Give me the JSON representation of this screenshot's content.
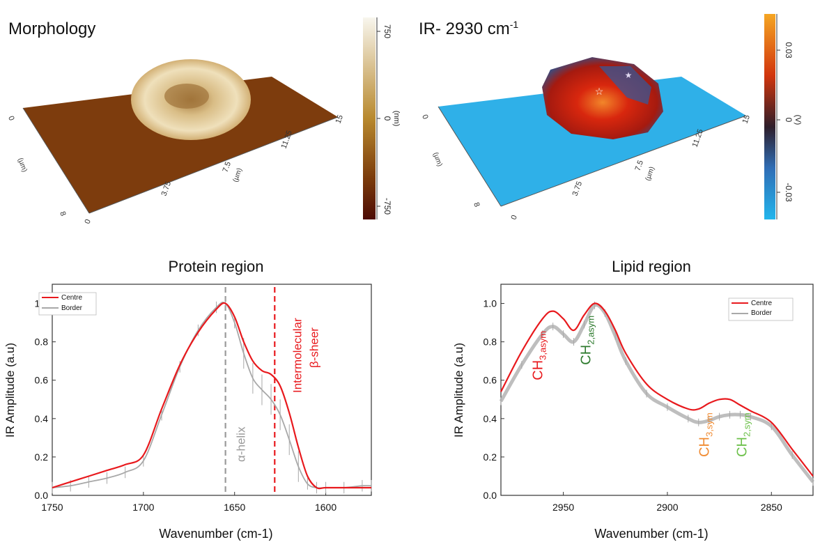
{
  "panels": {
    "morphology": {
      "title": "Morphology",
      "colorbar_ticks": [
        "750",
        "0",
        "-750"
      ],
      "colorbar_unit": "(nm)",
      "x_ticks": [
        "0",
        "3.75",
        "7.5",
        "11.25",
        "15"
      ],
      "x_unit": "(µm)",
      "y_ticks": [
        "0",
        "8"
      ],
      "y_unit": "(µm)",
      "colors": {
        "top": "#f8f6ee",
        "mid": "#b8892e",
        "low": "#7a3a0b",
        "bottom": "#4d0c05",
        "surface": "#7d3c0d"
      }
    },
    "ir_map": {
      "title_main": "IR- 2930 cm",
      "title_sup": "-1",
      "colorbar_ticks": [
        "0.03",
        "0",
        "-0.03"
      ],
      "colorbar_unit": "(V)",
      "x_ticks": [
        "0",
        "3.75",
        "7.5",
        "11.25",
        "15"
      ],
      "x_unit": "(µm)",
      "y_ticks": [
        "0",
        "8"
      ],
      "y_unit": "(µm)",
      "colors": {
        "top": "#f5a623",
        "mid_high": "#d1350d",
        "mid": "#2e1e2a",
        "mid_low": "#2f6db5",
        "bottom": "#22b5ec",
        "surface": "#2fb0e8"
      }
    }
  },
  "chart_data": [
    {
      "type": "line",
      "title": "Protein region",
      "xlabel": "Wavenumber (cm-1)",
      "ylabel": "IR Amplitude (a.u)",
      "xlim": [
        1750,
        1575
      ],
      "ylim": [
        0,
        1.1
      ],
      "x_ticks": [
        1750,
        1700,
        1650,
        1600
      ],
      "y_ticks": [
        0.0,
        0.2,
        0.4,
        0.6,
        0.8,
        1.0
      ],
      "y_tick_labels": [
        "0.0",
        "0.2",
        "0.4",
        "0.6",
        "0.8",
        "1.0"
      ],
      "x_tick_labels": [
        "1750",
        "1700",
        "1650",
        "1600"
      ],
      "legend": {
        "position": "top-left",
        "entries": [
          "Centre",
          "Border"
        ]
      },
      "colors": {
        "Centre": "#e8191d",
        "Border": "#a8a8a8"
      },
      "x": [
        1750,
        1740,
        1730,
        1720,
        1710,
        1700,
        1690,
        1680,
        1670,
        1660,
        1655,
        1650,
        1645,
        1640,
        1635,
        1630,
        1625,
        1620,
        1615,
        1610,
        1605,
        1600,
        1590,
        1580,
        1575
      ],
      "series": [
        {
          "name": "Centre",
          "values": [
            0.04,
            0.07,
            0.1,
            0.13,
            0.16,
            0.21,
            0.45,
            0.68,
            0.85,
            0.97,
            1.0,
            0.93,
            0.8,
            0.7,
            0.65,
            0.63,
            0.57,
            0.43,
            0.25,
            0.1,
            0.04,
            0.04,
            0.04,
            0.04,
            0.04
          ]
        },
        {
          "name": "Border",
          "values": [
            0.04,
            0.05,
            0.07,
            0.09,
            0.12,
            0.18,
            0.42,
            0.67,
            0.86,
            0.98,
            1.0,
            0.9,
            0.74,
            0.61,
            0.55,
            0.5,
            0.42,
            0.29,
            0.15,
            0.06,
            0.04,
            0.04,
            0.04,
            0.05,
            0.05
          ]
        }
      ],
      "annotations": [
        {
          "x": 1655,
          "label": "α-helix",
          "color": "#9a9a9a"
        },
        {
          "x": 1628,
          "label": "Intermolecular",
          "label2": "β-sheer",
          "color": "#e8191d"
        }
      ]
    },
    {
      "type": "line",
      "title": "Lipid region",
      "xlabel": "Wavenumber (cm-1)",
      "ylabel": "IR Amplitude (a.u)",
      "xlim": [
        2980,
        2830
      ],
      "ylim": [
        0,
        1.1
      ],
      "x_ticks": [
        2950,
        2900,
        2850
      ],
      "x_tick_labels": [
        "2950",
        "2900",
        "2850"
      ],
      "y_ticks": [
        0.0,
        0.2,
        0.4,
        0.6,
        0.8,
        1.0
      ],
      "y_tick_labels": [
        "0.0",
        "0.2",
        "0.4",
        "0.6",
        "0.8",
        "1.0"
      ],
      "legend": {
        "position": "top-right",
        "entries": [
          "Centre",
          "Border"
        ]
      },
      "colors": {
        "Centre": "#e8191d",
        "Border": "#a8a8a8"
      },
      "x": [
        2980,
        2970,
        2960,
        2955,
        2950,
        2945,
        2940,
        2935,
        2930,
        2925,
        2920,
        2910,
        2900,
        2890,
        2885,
        2880,
        2875,
        2870,
        2865,
        2860,
        2850,
        2840,
        2830
      ],
      "series": [
        {
          "name": "Centre",
          "values": [
            0.54,
            0.75,
            0.92,
            0.96,
            0.92,
            0.86,
            0.94,
            1.0,
            0.96,
            0.86,
            0.74,
            0.58,
            0.5,
            0.45,
            0.45,
            0.48,
            0.5,
            0.5,
            0.47,
            0.44,
            0.38,
            0.24,
            0.1
          ]
        },
        {
          "name": "Border",
          "values": [
            0.49,
            0.68,
            0.84,
            0.88,
            0.84,
            0.8,
            0.89,
            0.99,
            0.95,
            0.83,
            0.7,
            0.53,
            0.46,
            0.4,
            0.38,
            0.39,
            0.41,
            0.42,
            0.42,
            0.41,
            0.36,
            0.21,
            0.07
          ]
        }
      ],
      "annotations": [
        {
          "x": 2955,
          "base": "CH",
          "sub": "3,asym",
          "color": "#e8191d"
        },
        {
          "x": 2930,
          "base": "CH",
          "sub": "2,asym",
          "color": "#2d7a2d"
        },
        {
          "x": 2873,
          "base": "CH",
          "sub": "3,sym",
          "color": "#f08a30"
        },
        {
          "x": 2853,
          "base": "CH",
          "sub": "2,sym",
          "color": "#6cc04a"
        }
      ]
    }
  ]
}
